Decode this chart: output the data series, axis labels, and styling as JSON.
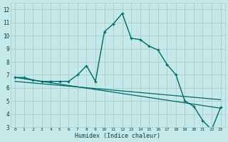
{
  "xlabel": "Humidex (Indice chaleur)",
  "bg_color": "#c5e8e8",
  "grid_color": "#a8cece",
  "line_color": "#006868",
  "xlim": [
    -0.5,
    23.5
  ],
  "ylim": [
    3,
    12.5
  ],
  "xticks": [
    0,
    1,
    2,
    3,
    4,
    5,
    6,
    7,
    8,
    9,
    10,
    11,
    12,
    13,
    14,
    15,
    16,
    17,
    18,
    19,
    20,
    21,
    22,
    23
  ],
  "yticks": [
    3,
    4,
    5,
    6,
    7,
    8,
    9,
    10,
    11,
    12
  ],
  "curve1_x": [
    0,
    1,
    2,
    3,
    4,
    5,
    6,
    7,
    8,
    9,
    10,
    11,
    12,
    13,
    14,
    15,
    16,
    17,
    18,
    19,
    20,
    21,
    22,
    23
  ],
  "curve1_y": [
    6.8,
    6.8,
    6.6,
    6.5,
    6.5,
    6.5,
    6.5,
    7.0,
    7.7,
    6.5,
    10.3,
    10.9,
    11.7,
    9.8,
    9.7,
    9.2,
    8.9,
    7.8,
    7.0,
    5.0,
    4.6,
    3.5,
    2.8,
    4.5
  ],
  "curve2_x": [
    0,
    23
  ],
  "curve2_y": [
    6.8,
    4.45
  ],
  "curve3_x": [
    0,
    23
  ],
  "curve3_y": [
    6.5,
    5.1
  ],
  "font_family": "monospace"
}
